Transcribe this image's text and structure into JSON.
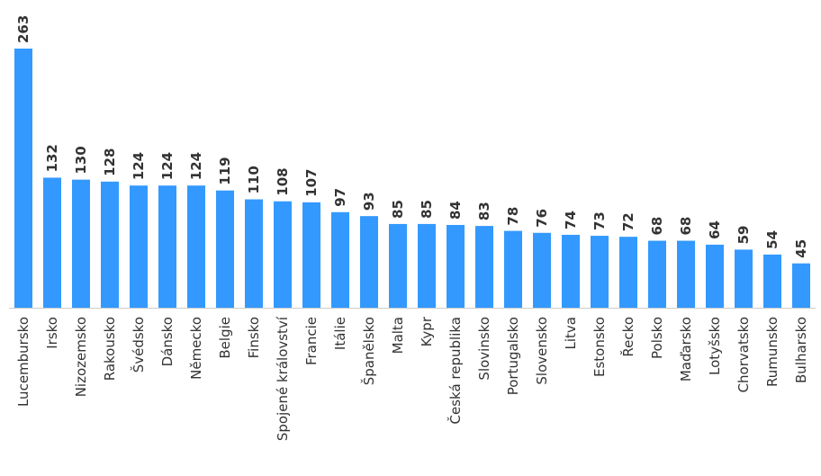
{
  "chart_data": {
    "type": "bar",
    "categories": [
      "Lucembursko",
      "Irsko",
      "Nizozemsko",
      "Rakousko",
      "Švédsko",
      "Dánsko",
      "Německo",
      "Belgie",
      "Finsko",
      "Spojené království",
      "Francie",
      "Itálie",
      "Španělsko",
      "Malta",
      "Kypr",
      "Česká republika",
      "Slovinsko",
      "Portugalsko",
      "Slovensko",
      "Litva",
      "Estonsko",
      "Řecko",
      "Polsko",
      "Maďarsko",
      "Lotyšsko",
      "Chorvatsko",
      "Rumunsko",
      "Bulharsko"
    ],
    "values": [
      263,
      132,
      130,
      128,
      124,
      124,
      124,
      119,
      110,
      108,
      107,
      97,
      93,
      85,
      85,
      84,
      83,
      78,
      76,
      74,
      73,
      72,
      68,
      68,
      64,
      59,
      54,
      45
    ],
    "title": "",
    "xlabel": "",
    "ylabel": "",
    "ylim": [
      0,
      263
    ],
    "grid": false,
    "legend": "none",
    "bar_color": "#3399ff",
    "data_labels": true
  }
}
